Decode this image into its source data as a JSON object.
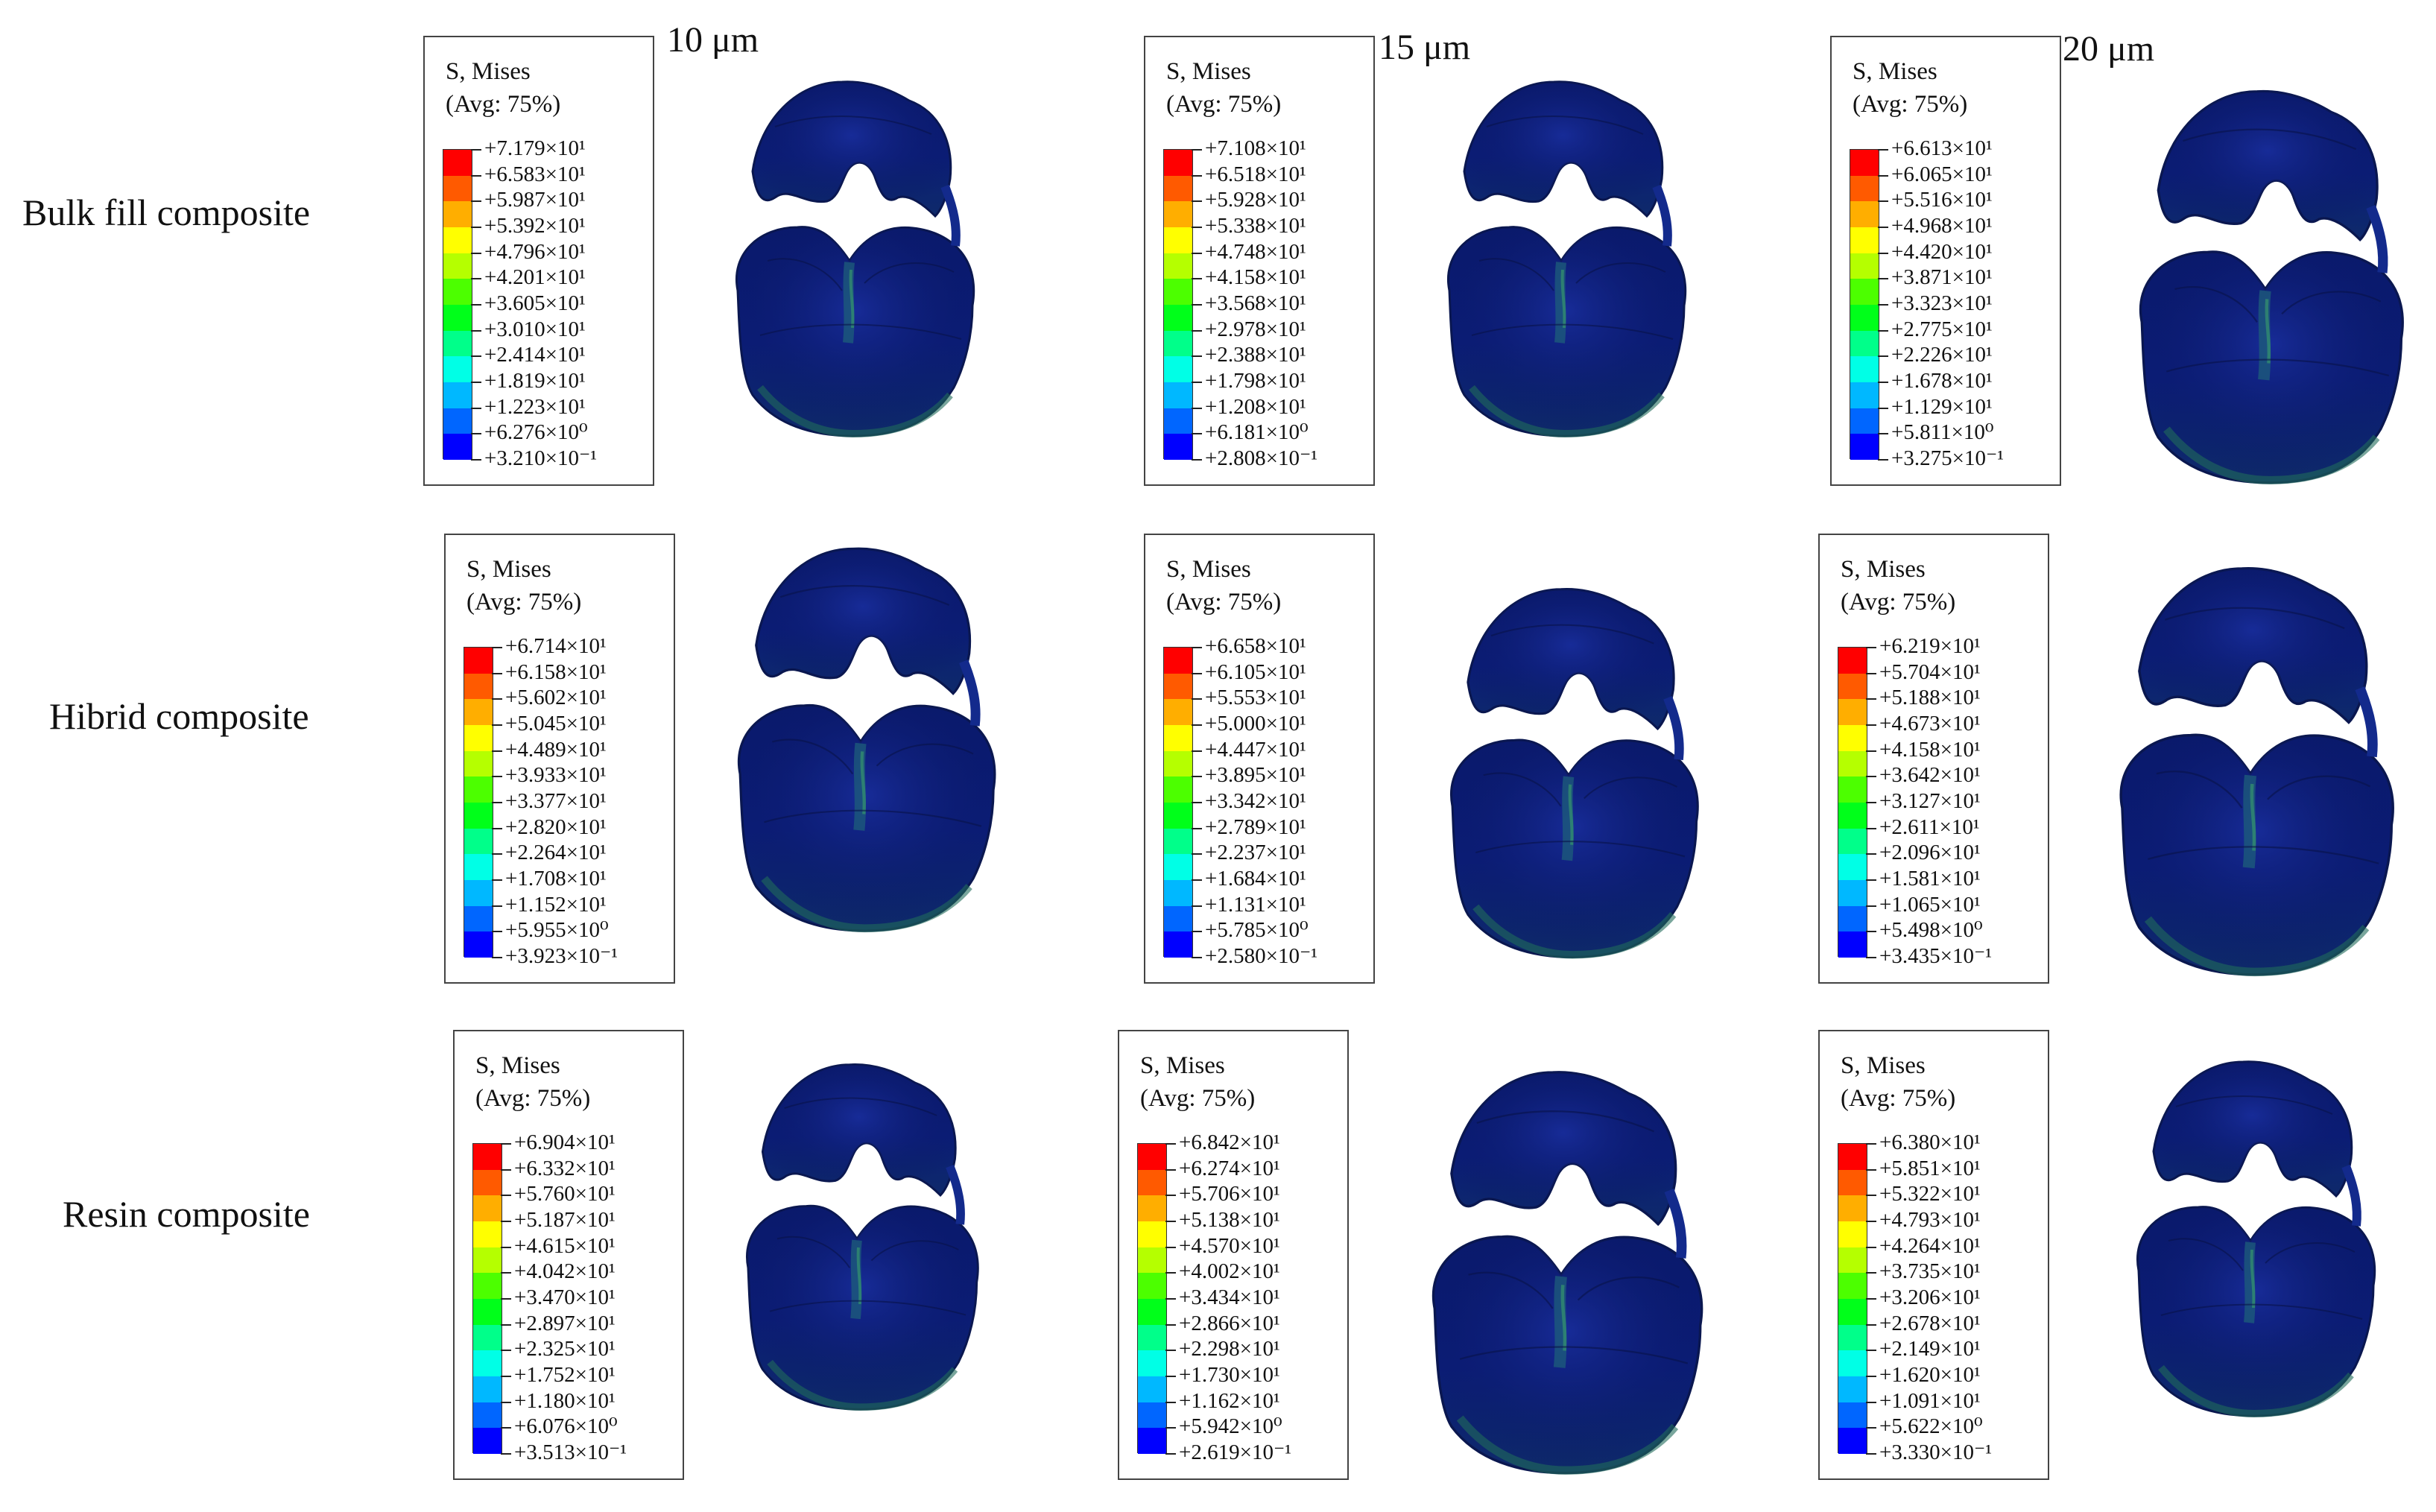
{
  "columns": [
    "10 μm",
    "15 μm",
    "20 μm"
  ],
  "rows": [
    "Bulk fill composite",
    "Hibrid composite",
    "Resin composite"
  ],
  "legend_title": "S, Mises",
  "legend_subtitle": "(Avg: 75%)",
  "colorbar_colors": [
    "#ff0000",
    "#ff5a00",
    "#ffae00",
    "#ffff00",
    "#b5ff00",
    "#4cff00",
    "#00ff1a",
    "#00ff8a",
    "#00ffe6",
    "#00b8ff",
    "#0066ff",
    "#0000ff"
  ],
  "legends": [
    [
      "+7.179×10¹",
      "+6.583×10¹",
      "+5.987×10¹",
      "+5.392×10¹",
      "+4.796×10¹",
      "+4.201×10¹",
      "+3.605×10¹",
      "+3.010×10¹",
      "+2.414×10¹",
      "+1.819×10¹",
      "+1.223×10¹",
      "+6.276×10⁰",
      "+3.210×10⁻¹"
    ],
    [
      "+7.108×10¹",
      "+6.518×10¹",
      "+5.928×10¹",
      "+5.338×10¹",
      "+4.748×10¹",
      "+4.158×10¹",
      "+3.568×10¹",
      "+2.978×10¹",
      "+2.388×10¹",
      "+1.798×10¹",
      "+1.208×10¹",
      "+6.181×10⁰",
      "+2.808×10⁻¹"
    ],
    [
      "+6.613×10¹",
      "+6.065×10¹",
      "+5.516×10¹",
      "+4.968×10¹",
      "+4.420×10¹",
      "+3.871×10¹",
      "+3.323×10¹",
      "+2.775×10¹",
      "+2.226×10¹",
      "+1.678×10¹",
      "+1.129×10¹",
      "+5.811×10⁰",
      "+3.275×10⁻¹"
    ],
    [
      "+6.714×10¹",
      "+6.158×10¹",
      "+5.602×10¹",
      "+5.045×10¹",
      "+4.489×10¹",
      "+3.933×10¹",
      "+3.377×10¹",
      "+2.820×10¹",
      "+2.264×10¹",
      "+1.708×10¹",
      "+1.152×10¹",
      "+5.955×10⁰",
      "+3.923×10⁻¹"
    ],
    [
      "+6.658×10¹",
      "+6.105×10¹",
      "+5.553×10¹",
      "+5.000×10¹",
      "+4.447×10¹",
      "+3.895×10¹",
      "+3.342×10¹",
      "+2.789×10¹",
      "+2.237×10¹",
      "+1.684×10¹",
      "+1.131×10¹",
      "+5.785×10⁰",
      "+2.580×10⁻¹"
    ],
    [
      "+6.219×10¹",
      "+5.704×10¹",
      "+5.188×10¹",
      "+4.673×10¹",
      "+4.158×10¹",
      "+3.642×10¹",
      "+3.127×10¹",
      "+2.611×10¹",
      "+2.096×10¹",
      "+1.581×10¹",
      "+1.065×10¹",
      "+5.498×10⁰",
      "+3.435×10⁻¹"
    ],
    [
      "+6.904×10¹",
      "+6.332×10¹",
      "+5.760×10¹",
      "+5.187×10¹",
      "+4.615×10¹",
      "+4.042×10¹",
      "+3.470×10¹",
      "+2.897×10¹",
      "+2.325×10¹",
      "+1.752×10¹",
      "+1.180×10¹",
      "+6.076×10⁰",
      "+3.513×10⁻¹"
    ],
    [
      "+6.842×10¹",
      "+6.274×10¹",
      "+5.706×10¹",
      "+5.138×10¹",
      "+4.570×10¹",
      "+4.002×10¹",
      "+3.434×10¹",
      "+2.866×10¹",
      "+2.298×10¹",
      "+1.730×10¹",
      "+1.162×10¹",
      "+5.942×10⁰",
      "+2.619×10⁻¹"
    ],
    [
      "+6.380×10¹",
      "+5.851×10¹",
      "+5.322×10¹",
      "+4.793×10¹",
      "+4.264×10¹",
      "+3.735×10¹",
      "+3.206×10¹",
      "+2.678×10¹",
      "+2.149×10¹",
      "+1.620×10¹",
      "+1.091×10¹",
      "+5.622×10⁰",
      "+3.330×10⁻¹"
    ]
  ]
}
